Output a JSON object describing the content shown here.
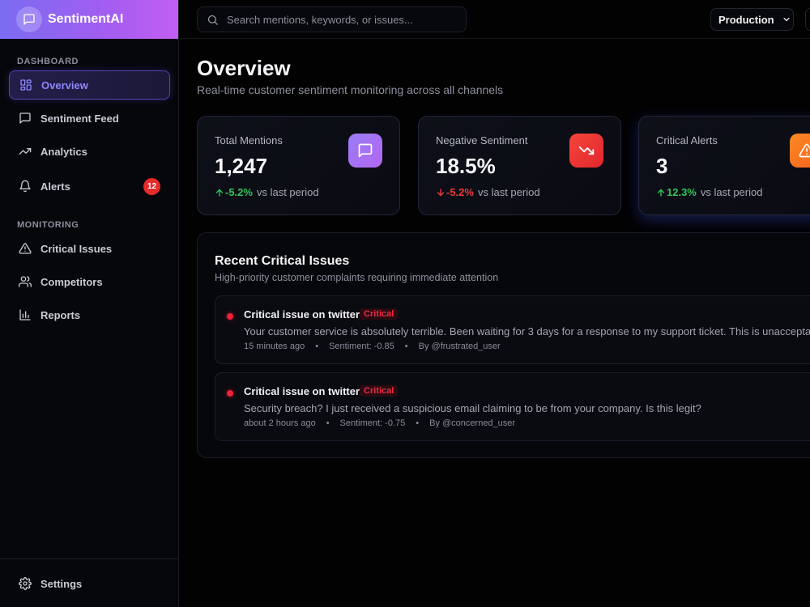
{
  "app": {
    "name": "SentimentAI"
  },
  "colors": {
    "accent": "#7b6cf2",
    "brand_gradient_end": "#c25ef2",
    "positive": "#2fc65a",
    "negative": "#ef3b3b",
    "critical": "#ef2a45"
  },
  "sidebar": {
    "sections": [
      {
        "label": "DASHBOARD"
      },
      {
        "label": "MONITORING"
      }
    ],
    "items": [
      {
        "label": "Overview",
        "icon": "grid-icon",
        "active": true
      },
      {
        "label": "Sentiment Feed",
        "icon": "message-icon"
      },
      {
        "label": "Analytics",
        "icon": "trending-up-icon"
      },
      {
        "label": "Alerts",
        "icon": "bell-icon",
        "badge": "12"
      },
      {
        "label": "Critical Issues",
        "icon": "warning-triangle-icon"
      },
      {
        "label": "Competitors",
        "icon": "users-icon"
      },
      {
        "label": "Reports",
        "icon": "bar-chart-icon"
      }
    ],
    "settings": {
      "label": "Settings",
      "icon": "gear-icon"
    }
  },
  "topbar": {
    "search_placeholder": "Search mentions, keywords, or issues...",
    "environment": "Production"
  },
  "page": {
    "title": "Overview",
    "subtitle": "Real-time customer sentiment monitoring across all channels"
  },
  "stats": [
    {
      "label": "Total Mentions",
      "value": "1,247",
      "delta": "-5.2%",
      "delta_dir": "up",
      "suffix": "vs last period",
      "icon": "message-icon"
    },
    {
      "label": "Negative Sentiment",
      "value": "18.5%",
      "delta": "-5.2%",
      "delta_dir": "down",
      "suffix": "vs last period",
      "icon": "trending-down-icon"
    },
    {
      "label": "Critical Alerts",
      "value": "3",
      "delta": "12.3%",
      "delta_dir": "up",
      "suffix": "vs last period",
      "icon": "warning-triangle-icon"
    }
  ],
  "critical": {
    "title": "Recent Critical Issues",
    "subtitle": "High-priority customer complaints requiring immediate attention",
    "issues": [
      {
        "title": "Critical issue on twitter",
        "tag": "Critical",
        "body": "Your customer service is absolutely terrible. Been waiting for 3 days for a response to my support ticket. This is unacceptable",
        "time": "15 minutes ago",
        "sentiment": "Sentiment: -0.85",
        "author": "By @frustrated_user"
      },
      {
        "title": "Critical issue on twitter",
        "tag": "Critical",
        "body": "Security breach? I just received a suspicious email claiming to be from your company. Is this legit?",
        "time": "about 2 hours ago",
        "sentiment": "Sentiment: -0.75",
        "author": "By @concerned_user"
      }
    ]
  }
}
